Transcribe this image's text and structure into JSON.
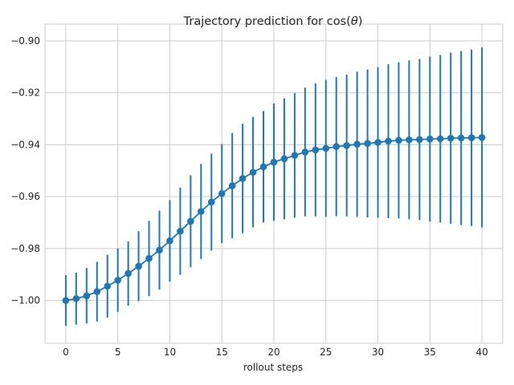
{
  "chart_data": {
    "type": "line",
    "title_prefix": "Trajectory prediction for cos(",
    "title_symbol": "θ",
    "title_suffix": ")",
    "xlabel": "rollout steps",
    "ylabel": "",
    "xlim": [
      -2,
      42
    ],
    "ylim": [
      -1.0165,
      -0.8935
    ],
    "grid": true,
    "x_ticks": [
      0,
      5,
      10,
      15,
      20,
      25,
      30,
      35,
      40
    ],
    "x_tick_labels": [
      "0",
      "5",
      "10",
      "15",
      "20",
      "25",
      "30",
      "35",
      "40"
    ],
    "y_ticks": [
      -1.0,
      -0.98,
      -0.96,
      -0.94,
      -0.92,
      -0.9
    ],
    "y_tick_labels": [
      "−1.00",
      "−0.98",
      "−0.96",
      "−0.94",
      "−0.92",
      "−0.90"
    ],
    "color": "#1f77b4",
    "series": [
      {
        "x": [
          0,
          1,
          2,
          3,
          4,
          5,
          6,
          7,
          8,
          9,
          10,
          11,
          12,
          13,
          14,
          15,
          16,
          17,
          18,
          19,
          20,
          21,
          22,
          23,
          24,
          25,
          26,
          27,
          28,
          29,
          30,
          31,
          32,
          33,
          34,
          35,
          36,
          37,
          38,
          39,
          40
        ],
        "y": [
          -1.0,
          -0.9993,
          -0.9982,
          -0.9966,
          -0.9945,
          -0.9922,
          -0.9896,
          -0.9868,
          -0.9838,
          -0.9806,
          -0.977,
          -0.9733,
          -0.9695,
          -0.9657,
          -0.9621,
          -0.9588,
          -0.9558,
          -0.953,
          -0.9506,
          -0.9485,
          -0.9467,
          -0.9454,
          -0.9441,
          -0.9428,
          -0.942,
          -0.9414,
          -0.9407,
          -0.9403,
          -0.9398,
          -0.9395,
          -0.9391,
          -0.9386,
          -0.9383,
          -0.9381,
          -0.938,
          -0.9378,
          -0.9377,
          -0.9375,
          -0.9374,
          -0.9373,
          -0.9372
        ],
        "err": [
          0.0098,
          0.01,
          0.0107,
          0.0115,
          0.0121,
          0.0122,
          0.0124,
          0.0135,
          0.0145,
          0.0152,
          0.0157,
          0.0168,
          0.0177,
          0.0183,
          0.0187,
          0.0191,
          0.0203,
          0.0211,
          0.0213,
          0.0215,
          0.0226,
          0.0233,
          0.024,
          0.0248,
          0.0256,
          0.0264,
          0.0268,
          0.0273,
          0.028,
          0.0285,
          0.029,
          0.0297,
          0.0301,
          0.0306,
          0.031,
          0.0318,
          0.0323,
          0.033,
          0.0335,
          0.034,
          0.0347
        ]
      }
    ]
  }
}
